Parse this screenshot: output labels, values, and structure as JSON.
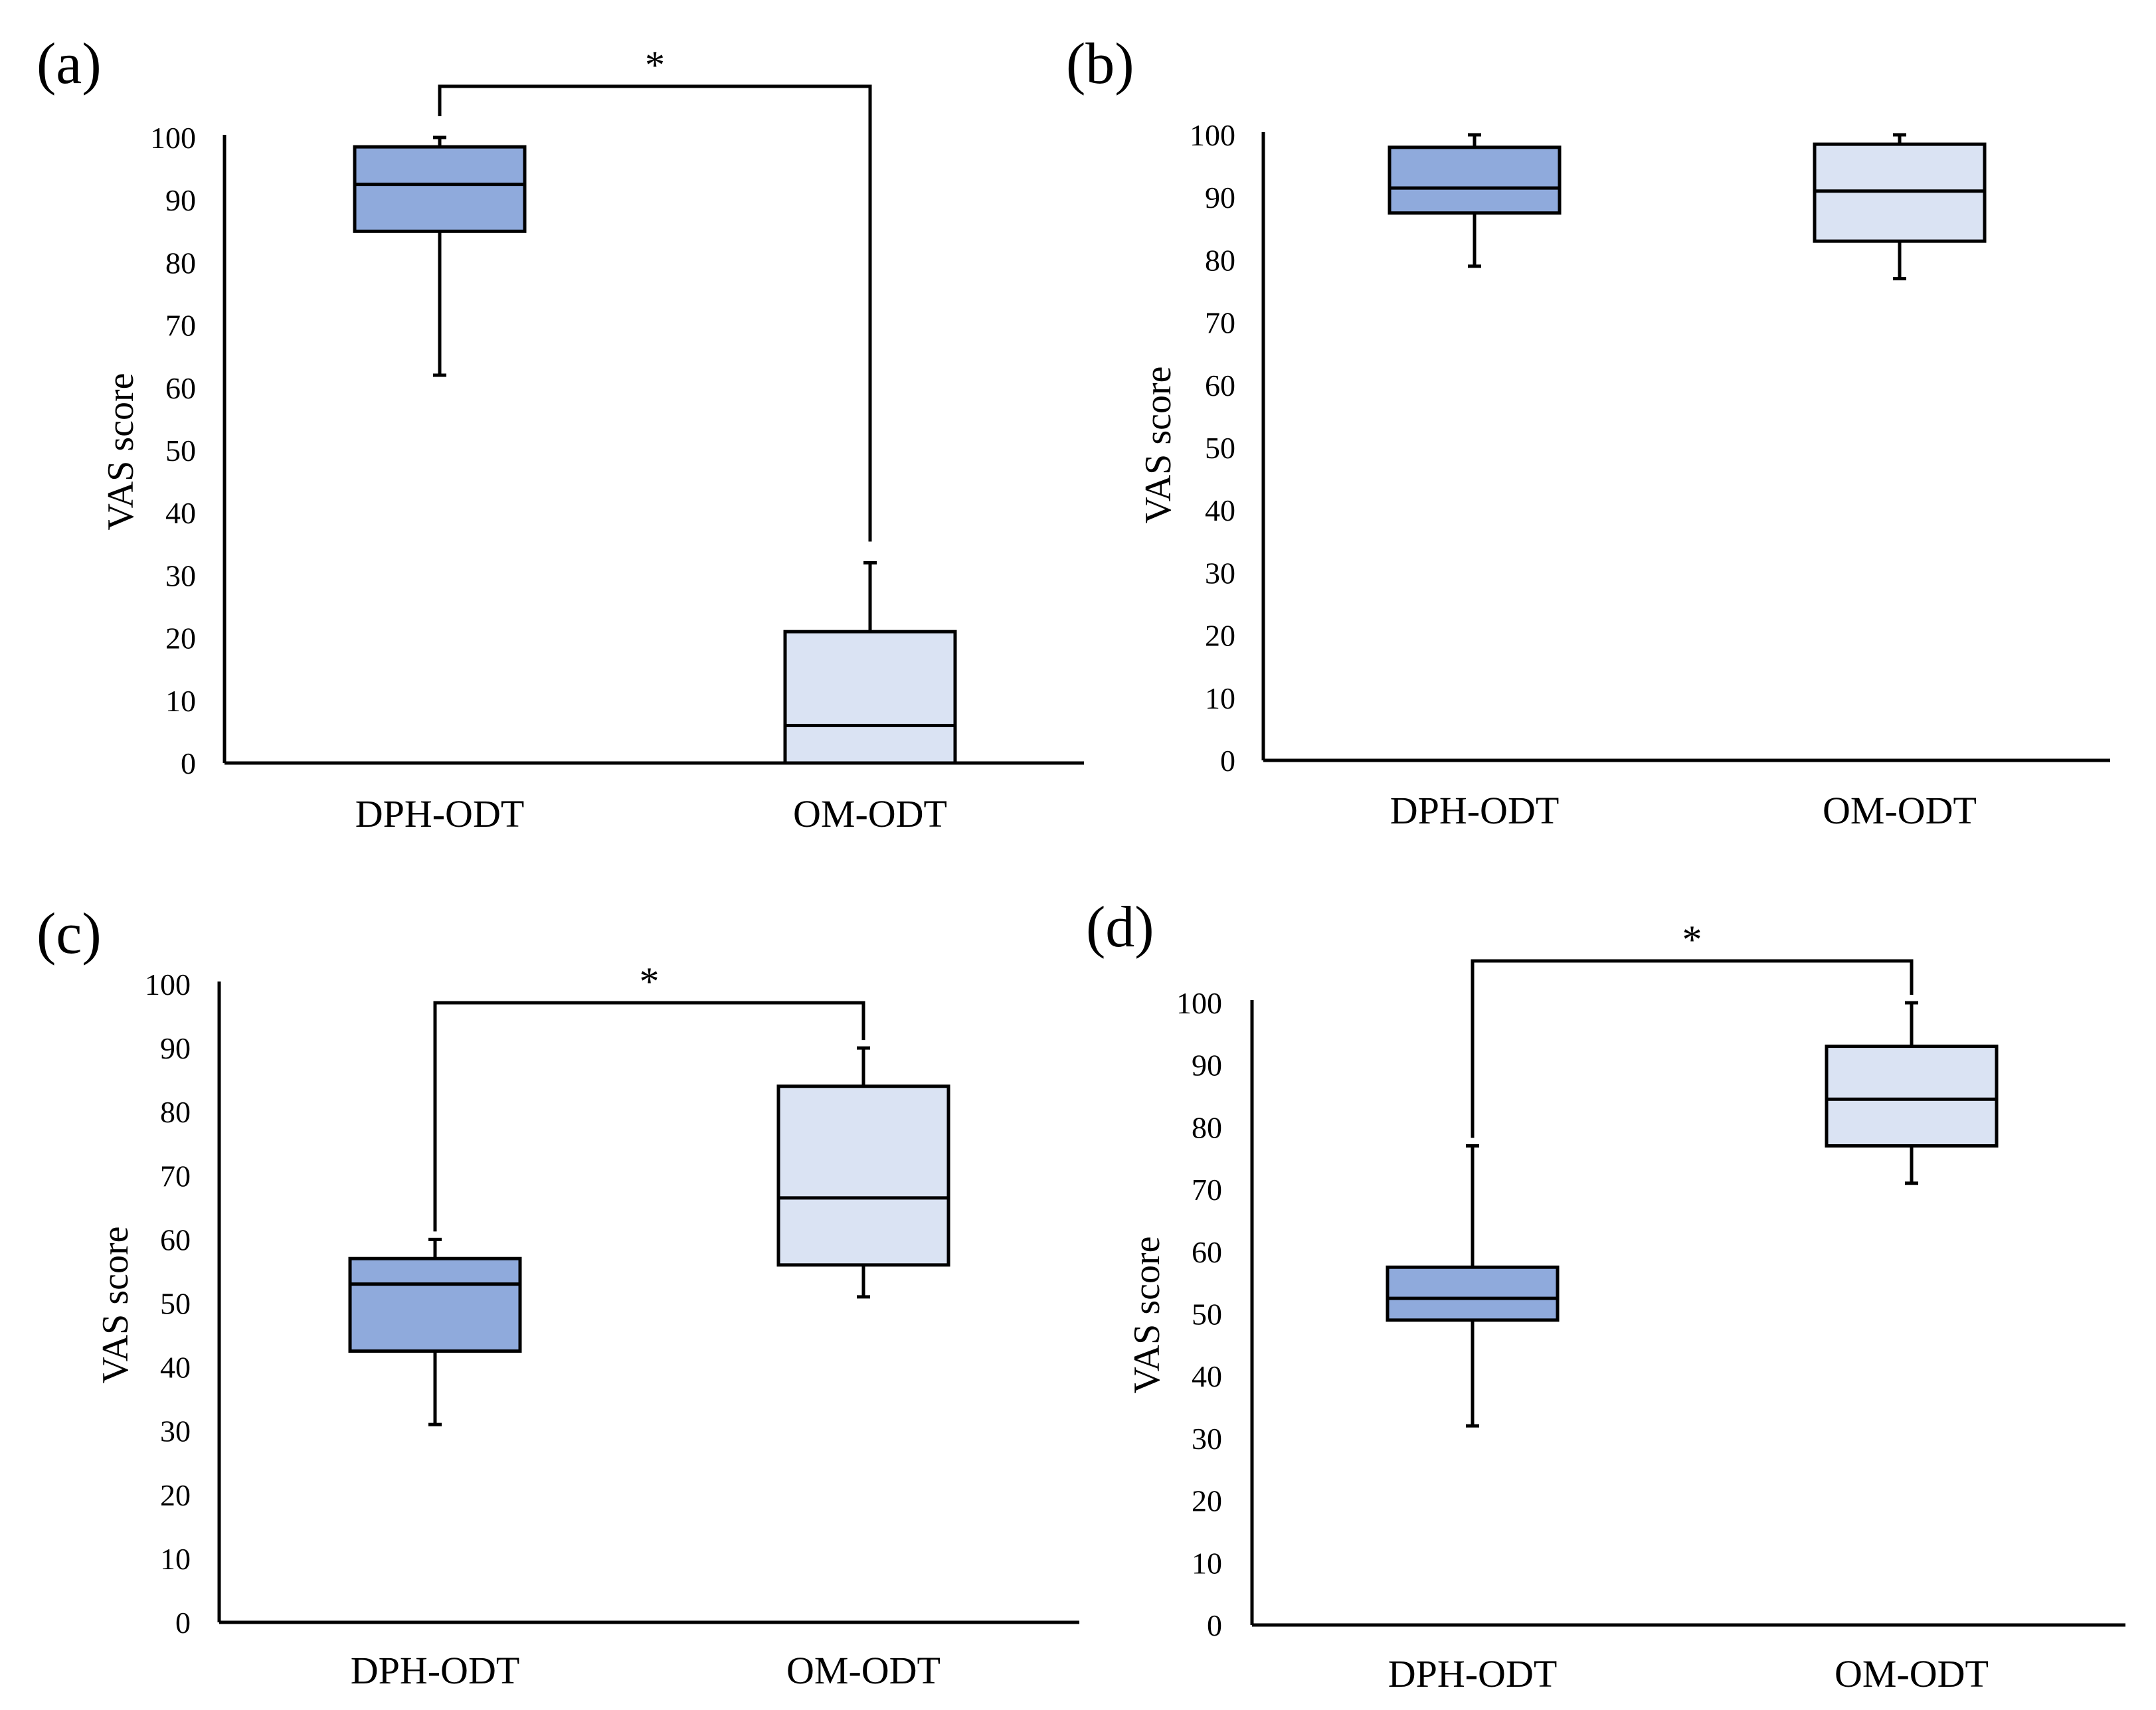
{
  "colors": {
    "dph_fill": "#8FAADC",
    "om_fill": "#DAE3F3",
    "stroke": "#000000"
  },
  "chart_data": [
    {
      "panel": "(a)",
      "type": "box",
      "ylabel": "VAS score",
      "ylim": [
        0,
        100
      ],
      "yticks": [
        "0",
        "10",
        "20",
        "30",
        "40",
        "50",
        "60",
        "70",
        "80",
        "90",
        "100"
      ],
      "categories": [
        "DPH-ODT",
        "OM-ODT"
      ],
      "boxes": [
        {
          "name": "DPH-ODT",
          "min": 62,
          "q1": 85,
          "median": 92.5,
          "q3": 98.5,
          "max": 100
        },
        {
          "name": "OM-ODT",
          "min": 0,
          "q1": 0,
          "median": 6,
          "q3": 21,
          "max": 32
        }
      ],
      "significance": {
        "label": "*",
        "pair": [
          0,
          1
        ]
      }
    },
    {
      "panel": "(b)",
      "type": "box",
      "ylabel": "VAS score",
      "ylim": [
        0,
        100
      ],
      "yticks": [
        "0",
        "10",
        "20",
        "30",
        "40",
        "50",
        "60",
        "70",
        "80",
        "90",
        "100"
      ],
      "categories": [
        "DPH-ODT",
        "OM-ODT"
      ],
      "boxes": [
        {
          "name": "DPH-ODT",
          "min": 79,
          "q1": 87.5,
          "median": 91.5,
          "q3": 98,
          "max": 100
        },
        {
          "name": "OM-ODT",
          "min": 77,
          "q1": 83,
          "median": 91,
          "q3": 98.5,
          "max": 100
        }
      ],
      "significance": null
    },
    {
      "panel": "(c)",
      "type": "box",
      "ylabel": "VAS score",
      "ylim": [
        0,
        100
      ],
      "yticks": [
        "0",
        "10",
        "20",
        "30",
        "40",
        "50",
        "60",
        "70",
        "80",
        "90",
        "100"
      ],
      "categories": [
        "DPH-ODT",
        "OM-ODT"
      ],
      "boxes": [
        {
          "name": "DPH-ODT",
          "min": 31,
          "q1": 42.5,
          "median": 53,
          "q3": 57,
          "max": 60
        },
        {
          "name": "OM-ODT",
          "min": 51,
          "q1": 56,
          "median": 66.5,
          "q3": 84,
          "max": 90
        }
      ],
      "significance": {
        "label": "*",
        "pair": [
          0,
          1
        ]
      }
    },
    {
      "panel": "(d)",
      "type": "box",
      "ylabel": "VAS score",
      "ylim": [
        0,
        100
      ],
      "yticks": [
        "0",
        "10",
        "20",
        "30",
        "40",
        "50",
        "60",
        "70",
        "80",
        "90",
        "100"
      ],
      "categories": [
        "DPH-ODT",
        "OM-ODT"
      ],
      "boxes": [
        {
          "name": "DPH-ODT",
          "min": 32,
          "q1": 49,
          "median": 52.5,
          "q3": 57.5,
          "max": 77
        },
        {
          "name": "OM-ODT",
          "min": 71,
          "q1": 77,
          "median": 84.5,
          "q3": 93,
          "max": 100
        }
      ],
      "significance": {
        "label": "*",
        "pair": [
          0,
          1
        ]
      }
    }
  ]
}
